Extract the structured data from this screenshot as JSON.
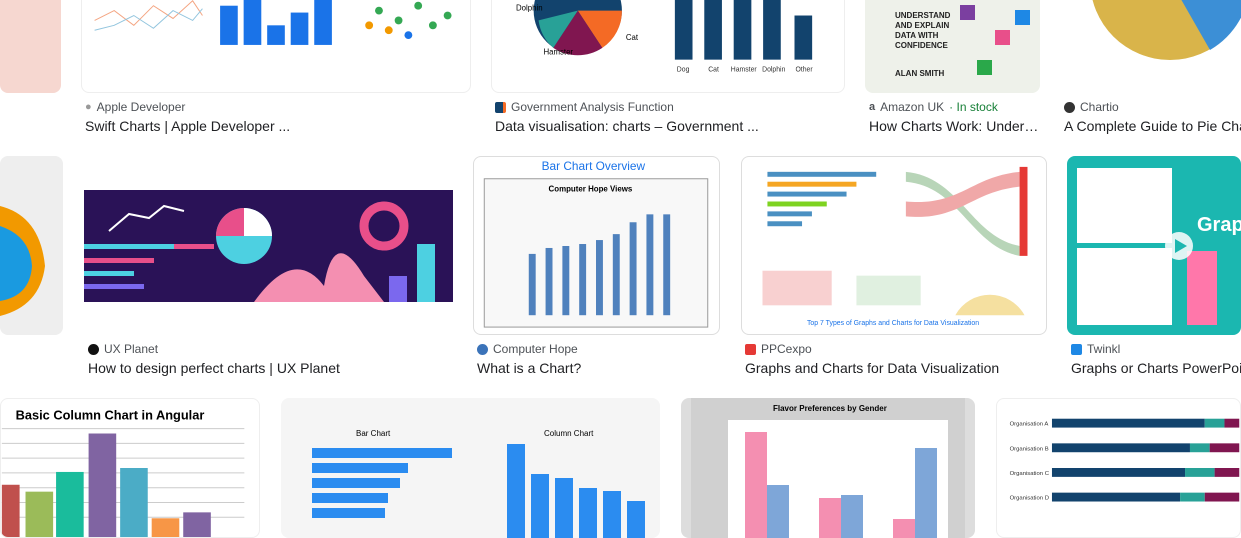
{
  "results": [
    {
      "source": "Apple Developer",
      "title": "Swift Charts | Apple Developer ..."
    },
    {
      "source": "Government Analysis Function",
      "title": "Data visualisation: charts – Government ..."
    },
    {
      "source": "Amazon UK",
      "stock": "· In stock",
      "title": "How Charts Work: Under…"
    },
    {
      "source": "Chartio",
      "title": "A Complete Guide to Pie Charts"
    },
    {
      "source": "UX Planet",
      "title": "How to design perfect charts | UX Planet"
    },
    {
      "source": "Computer Hope",
      "title": "What is a Chart?"
    },
    {
      "source": "PPCexpo",
      "title": "Graphs and Charts for Data Visualization"
    },
    {
      "source": "Twinkl",
      "title": "Graphs or Charts PowerPoint"
    }
  ],
  "thumbs": {
    "pets": [
      "Dog",
      "Cat",
      "Hamster",
      "Dolphin",
      "Other"
    ],
    "pie_labels": [
      "Dolphin",
      "Hamster",
      "Cat"
    ],
    "book": [
      "UNDERSTAND",
      "AND EXPLAIN",
      "DATA WITH",
      "CONFIDENCE",
      "ALAN SMITH"
    ],
    "hope_title": "Bar Chart Overview",
    "hope_chart": "Computer Hope Views",
    "angular": "Basic Column Chart in Angular",
    "bar_chart": "Bar Chart",
    "column_chart": "Column Chart",
    "flavor": "Flavor Preferences by Gender",
    "orgs": [
      "Organisation A",
      "Organisation B",
      "Organisation C",
      "Organisation D"
    ],
    "twinkl": "Grap"
  }
}
